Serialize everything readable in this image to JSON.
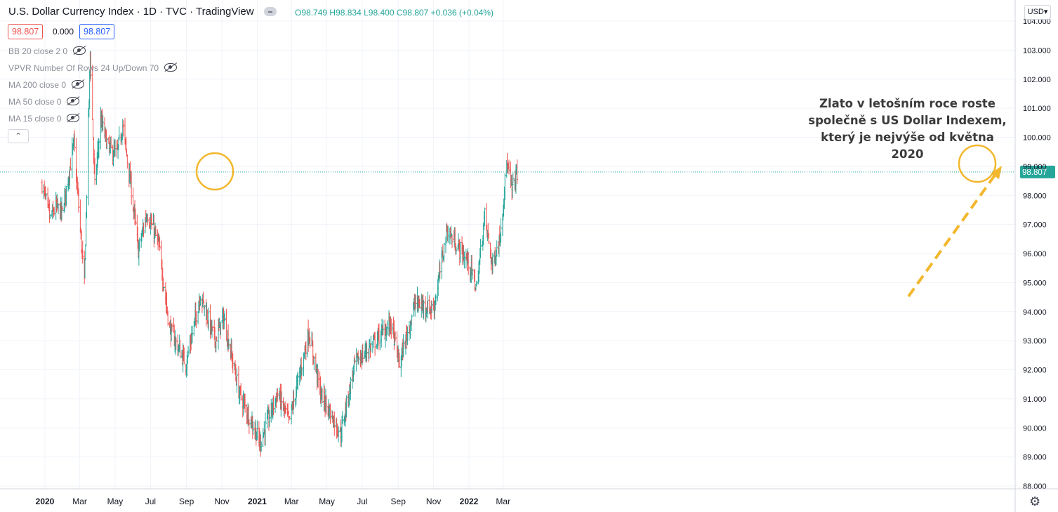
{
  "header": {
    "title": "U.S. Dollar Currency Index · 1D · TVC · TradingView",
    "ohlc": {
      "o_label": "O",
      "o": "98.749",
      "h_label": "H",
      "h": "98.834",
      "l_label": "L",
      "l": "98.400",
      "c_label": "C",
      "c": "98.807",
      "change": "+0.036 (+0.04%)"
    },
    "sell_price": "98.807",
    "spread": "0.000",
    "buy_price": "98.807",
    "currency": "USD",
    "currency_caret": "▾",
    "collapse_glyph": "⌃"
  },
  "indicators": [
    "BB 20 close 2 0",
    "VPVR Number Of Rows 24 Up/Down 70",
    "MA 200 close 0",
    "MA 50 close 0",
    "MA 15 close 0"
  ],
  "annotation": {
    "line1": "Zlato v letošním roce roste",
    "line2": "společně s US Dollar Indexem,",
    "line3": "který je nejvýše od května 2020"
  },
  "icons": {
    "settings": "gear-icon",
    "visibility": "eye-off-icon",
    "collapse": "chevron-up-icon",
    "dropdown": "chevron-down-icon"
  },
  "colors": {
    "up": "#26a69a",
    "down": "#ef5350",
    "annotation": "#f2b72c",
    "last_price_line": "#26a69a",
    "axis_text": "#131722"
  },
  "chart_data": {
    "type": "ohlc_bar",
    "title": "U.S. Dollar Currency Index",
    "timeframe": "1D",
    "x_ticks": [
      "2020",
      "Mar",
      "May",
      "Jul",
      "Sep",
      "Nov",
      "2021",
      "Mar",
      "May",
      "Jul",
      "Sep",
      "Nov",
      "2022",
      "Mar"
    ],
    "y_ticks": [
      "88.000",
      "89.000",
      "90.000",
      "91.000",
      "92.000",
      "93.000",
      "94.000",
      "95.000",
      "96.000",
      "97.000",
      "98.000",
      "99.000",
      "100.000",
      "101.000",
      "102.000",
      "103.000",
      "104.000"
    ],
    "ylim": [
      88.0,
      104.0
    ],
    "last_price": 98.807,
    "last_price_label": "98.807",
    "approx_close_path": [
      [
        "2019-12-27",
        98.4
      ],
      [
        "2020-01-10",
        97.2
      ],
      [
        "2020-01-20",
        97.6
      ],
      [
        "2020-01-31",
        97.4
      ],
      [
        "2020-02-20",
        99.8
      ],
      [
        "2020-03-09",
        94.9
      ],
      [
        "2020-03-19",
        102.9
      ],
      [
        "2020-03-27",
        98.3
      ],
      [
        "2020-04-06",
        100.6
      ],
      [
        "2020-04-20",
        99.6
      ],
      [
        "2020-05-04",
        99.4
      ],
      [
        "2020-05-14",
        100.4
      ],
      [
        "2020-05-29",
        98.2
      ],
      [
        "2020-06-10",
        96.1
      ],
      [
        "2020-06-25",
        97.4
      ],
      [
        "2020-07-15",
        96.3
      ],
      [
        "2020-08-03",
        93.4
      ],
      [
        "2020-08-31",
        92.2
      ],
      [
        "2020-09-25",
        94.6
      ],
      [
        "2020-10-20",
        93.0
      ],
      [
        "2020-11-04",
        93.8
      ],
      [
        "2020-12-01",
        91.2
      ],
      [
        "2021-01-06",
        89.5
      ],
      [
        "2021-02-05",
        91.2
      ],
      [
        "2021-02-25",
        90.2
      ],
      [
        "2021-03-31",
        93.3
      ],
      [
        "2021-04-20",
        91.2
      ],
      [
        "2021-05-25",
        89.8
      ],
      [
        "2021-06-18",
        92.2
      ],
      [
        "2021-07-15",
        92.8
      ],
      [
        "2021-08-20",
        93.6
      ],
      [
        "2021-09-03",
        92.2
      ],
      [
        "2021-09-30",
        94.3
      ],
      [
        "2021-11-01",
        94.1
      ],
      [
        "2021-11-24",
        96.8
      ],
      [
        "2021-12-31",
        95.7
      ],
      [
        "2022-01-14",
        94.8
      ],
      [
        "2022-01-28",
        97.3
      ],
      [
        "2022-02-10",
        95.6
      ],
      [
        "2022-02-23",
        96.5
      ],
      [
        "2022-03-07",
        99.1
      ],
      [
        "2022-03-16",
        98.2
      ],
      [
        "2022-03-25",
        98.8
      ]
    ]
  }
}
